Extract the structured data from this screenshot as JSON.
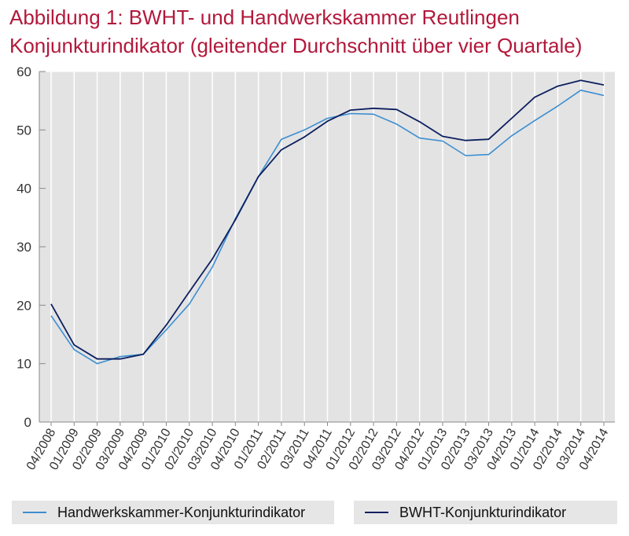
{
  "title": {
    "line1": "Abbildung 1: BWHT- und Handwerkskammer  Reutlingen",
    "line2": "Konjunkturindikator (gleitender Durchschnitt über vier Quartale)"
  },
  "legend": {
    "hwk_label": "Handwerkskammer-Konjunkturindikator",
    "bwht_label": "BWHT-Konjunkturindikator"
  },
  "colors": {
    "title": "#b3183b",
    "hwk": "#3b8ed0",
    "bwht": "#0c1f5e",
    "plot_bg": "#e3e3e4",
    "grid": "#ffffff"
  },
  "chart_data": {
    "type": "line",
    "title": "Abbildung 1: BWHT- und Handwerkskammer  Reutlingen Konjunkturindikator (gleitender Durchschnitt über vier Quartale)",
    "categories": [
      "04/2008",
      "01/2009",
      "02/2009",
      "03/2009",
      "04/2009",
      "01/2010",
      "02/2010",
      "03/2010",
      "04/2010",
      "01/2011",
      "02/2011",
      "03/2011",
      "04/2011",
      "01/2012",
      "02/2012",
      "03/2012",
      "04/2012",
      "01/2013",
      "02/2013",
      "03/2013",
      "04/2013",
      "01/2014",
      "02/2014",
      "03/2014",
      "04/2014"
    ],
    "ylim": [
      0,
      60
    ],
    "yticks": [
      0,
      10,
      20,
      30,
      40,
      50,
      60
    ],
    "grid": true,
    "legend_position": "bottom",
    "series": [
      {
        "name": "Handwerkskammer-Konjunkturindikator",
        "color": "#3b8ed0",
        "values": [
          18.2,
          12.4,
          10.0,
          11.2,
          11.6,
          15.8,
          20.2,
          26.5,
          34.8,
          42.0,
          48.4,
          50.0,
          52.0,
          52.8,
          52.7,
          51.0,
          48.6,
          48.1,
          45.6,
          45.8,
          49.0,
          51.6,
          54.1,
          56.8,
          55.9
        ]
      },
      {
        "name": "BWHT-Konjunkturindikator",
        "color": "#0c1f5e",
        "values": [
          20.2,
          13.2,
          10.8,
          10.8,
          11.6,
          16.6,
          22.3,
          27.9,
          34.6,
          42.0,
          46.6,
          48.8,
          51.5,
          53.4,
          53.7,
          53.5,
          51.4,
          48.9,
          48.2,
          48.4,
          52.0,
          55.6,
          57.5,
          58.5,
          57.7
        ]
      }
    ]
  }
}
